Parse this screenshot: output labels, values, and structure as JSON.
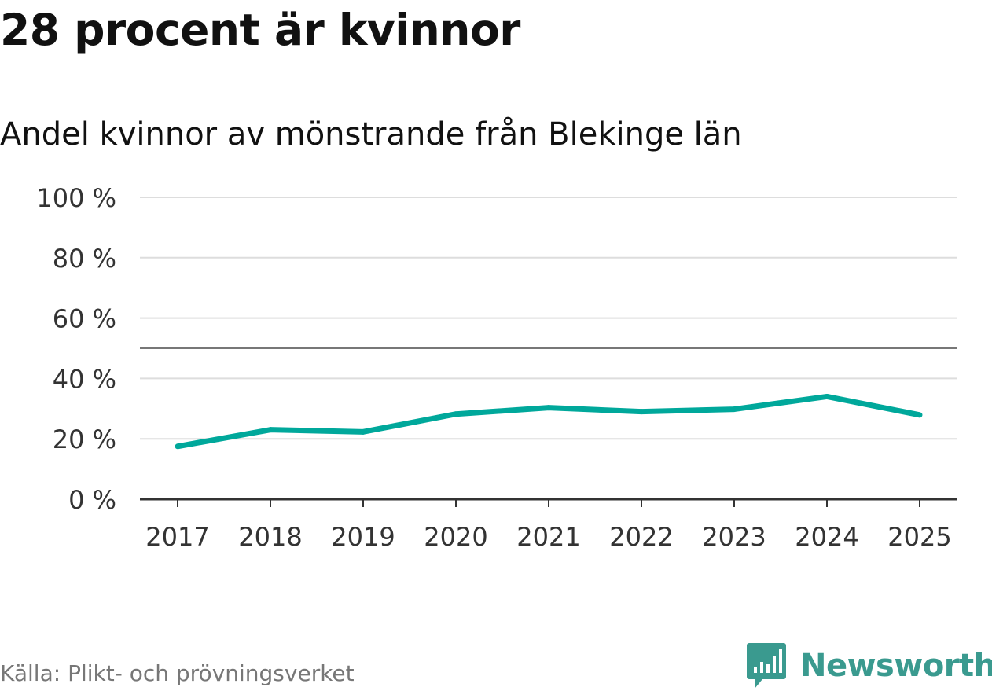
{
  "header": {
    "title": "28 procent är kvinnor",
    "subtitle": "Andel kvinnor av mönstrande från Blekinge län"
  },
  "chart_data": {
    "type": "line",
    "title": "28 procent är kvinnor",
    "subtitle": "Andel kvinnor av mönstrande från Blekinge län",
    "categories": [
      "2017",
      "2018",
      "2019",
      "2020",
      "2021",
      "2022",
      "2023",
      "2024",
      "2025"
    ],
    "series": [
      {
        "name": "Andel kvinnor",
        "values": [
          17.5,
          23,
          22.3,
          28.2,
          30.3,
          29,
          29.8,
          34,
          27.9
        ],
        "color": "#00a89b"
      }
    ],
    "reference_line": {
      "value": 50,
      "color": "#777777"
    },
    "ylim": [
      0,
      100
    ],
    "yticks": [
      0,
      20,
      40,
      60,
      80,
      100
    ],
    "ytick_labels": [
      "0 %",
      "20 %",
      "40 %",
      "60 %",
      "80 %",
      "100 %"
    ],
    "xlabel": "",
    "ylabel": "",
    "grid": true,
    "legend": "none"
  },
  "footer": {
    "source": "Källa: Plikt- och prövningsverket",
    "brand": "Newsworthy",
    "brand_color": "#3a9a8f",
    "brand_icon": "newsworthy-logo-icon"
  }
}
